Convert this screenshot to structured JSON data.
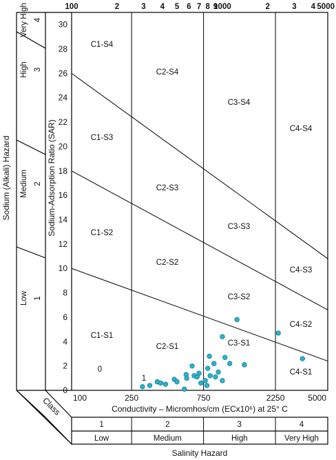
{
  "chart_data": {
    "type": "scatter",
    "xlabel": "Conductivity – Micromhos/cm  (ECx10⁶) at 25° C",
    "ylabel": "Sodium-Adsorption Ratio (SAR)",
    "left_axis_title": "Sodium (Alkali) Hazard",
    "bottom_axis_title": "Salinity Hazard",
    "class_label": "Class",
    "xlim": [
      100,
      5000
    ],
    "x_scale": "log",
    "ylim": [
      0,
      31
    ],
    "top_ticks": [
      "100",
      "2",
      "3",
      "4",
      "5",
      "6",
      "7",
      "8",
      "9",
      "1000",
      "2",
      "3",
      "4",
      "5000"
    ],
    "bottom_ticks": [
      "100",
      "250",
      "750",
      "2250",
      "5000"
    ],
    "y_ticks": [
      "0",
      "2",
      "4",
      "6",
      "8",
      "10",
      "12",
      "14",
      "16",
      "18",
      "20",
      "22",
      "24",
      "26",
      "28",
      "30"
    ],
    "salinity_classes": [
      {
        "number": "1",
        "name": "Low"
      },
      {
        "number": "2",
        "name": "Medium"
      },
      {
        "number": "3",
        "name": "High"
      },
      {
        "number": "4",
        "name": "Very High"
      }
    ],
    "sodium_classes": [
      {
        "number": "1",
        "name": "Low"
      },
      {
        "number": "2",
        "name": "Medium"
      },
      {
        "number": "3",
        "name": "High"
      },
      {
        "number": "4",
        "name": "Very High"
      }
    ],
    "zone_labels": [
      "C1-S4",
      "C2-S4",
      "C3-S4",
      "C4-S4",
      "C1-S3",
      "C2-S3",
      "C3-S3",
      "C4-S3",
      "C1-S2",
      "C2-S2",
      "C3-S2",
      "C4-S2",
      "C1-S1",
      "C2-S1",
      "C3-S1",
      "C4-S1"
    ],
    "zero_label": "0",
    "one_label": "1",
    "point_color": "#2bb3cc",
    "points": [
      {
        "x": 295,
        "y": 0.3
      },
      {
        "x": 330,
        "y": 0.4
      },
      {
        "x": 370,
        "y": 0.7
      },
      {
        "x": 390,
        "y": 0.6
      },
      {
        "x": 420,
        "y": 0.5
      },
      {
        "x": 480,
        "y": 0.9
      },
      {
        "x": 500,
        "y": 0.7
      },
      {
        "x": 560,
        "y": 0.1
      },
      {
        "x": 575,
        "y": 1.3
      },
      {
        "x": 580,
        "y": 1.0
      },
      {
        "x": 630,
        "y": 2.0
      },
      {
        "x": 650,
        "y": 1.2
      },
      {
        "x": 680,
        "y": 1.1
      },
      {
        "x": 700,
        "y": 1.4
      },
      {
        "x": 720,
        "y": 0.6
      },
      {
        "x": 770,
        "y": 0.8
      },
      {
        "x": 790,
        "y": 0.4
      },
      {
        "x": 800,
        "y": 1.8
      },
      {
        "x": 820,
        "y": 2.8
      },
      {
        "x": 830,
        "y": 1.2
      },
      {
        "x": 880,
        "y": 2.2
      },
      {
        "x": 900,
        "y": 1.1
      },
      {
        "x": 940,
        "y": 1.5
      },
      {
        "x": 1000,
        "y": 0.8
      },
      {
        "x": 1000,
        "y": 4.4
      },
      {
        "x": 1040,
        "y": 2.7
      },
      {
        "x": 1120,
        "y": 2.2
      },
      {
        "x": 1250,
        "y": 5.8
      },
      {
        "x": 1400,
        "y": 2.1
      },
      {
        "x": 2350,
        "y": 4.7
      },
      {
        "x": 3400,
        "y": 2.6
      }
    ]
  }
}
